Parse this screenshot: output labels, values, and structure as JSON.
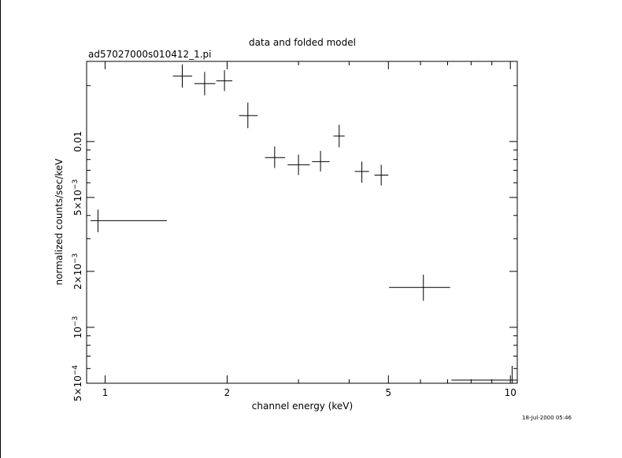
{
  "chart_data": {
    "type": "scatter",
    "title": "data and folded model",
    "subtitle": "ad57027000s010412_1.pi",
    "xlabel": "channel energy (keV)",
    "ylabel": "normalized counts/sec/keV",
    "x_scale": "log",
    "y_scale": "log",
    "xlim": [
      0.9,
      10.4
    ],
    "ylim": [
      0.0005,
      0.027
    ],
    "x_ticks": [
      {
        "value": 1,
        "label": "1"
      },
      {
        "value": 2,
        "label": "2"
      },
      {
        "value": 5,
        "label": "5"
      },
      {
        "value": 10,
        "label": "10"
      }
    ],
    "y_ticks": [
      {
        "value": 0.01,
        "base": "0.01",
        "exp": ""
      },
      {
        "value": 0.005,
        "base": "5×10",
        "exp": "−3"
      },
      {
        "value": 0.002,
        "base": "2×10",
        "exp": "−3"
      },
      {
        "value": 0.001,
        "base": "10",
        "exp": "−3"
      },
      {
        "value": 0.0005,
        "base": "5×10",
        "exp": "−4"
      }
    ],
    "grid": false,
    "series": [
      {
        "points": [
          {
            "x": 0.96,
            "xlo": 0.92,
            "xhi": 1.42,
            "y": 0.00375,
            "ylo": 0.00325,
            "yhi": 0.0043
          },
          {
            "x": 1.55,
            "xlo": 1.47,
            "xhi": 1.64,
            "y": 0.0225,
            "ylo": 0.0195,
            "yhi": 0.026
          },
          {
            "x": 1.76,
            "xlo": 1.66,
            "xhi": 1.87,
            "y": 0.0205,
            "ylo": 0.0177,
            "yhi": 0.0237
          },
          {
            "x": 1.97,
            "xlo": 1.88,
            "xhi": 2.06,
            "y": 0.0212,
            "ylo": 0.0187,
            "yhi": 0.0242
          },
          {
            "x": 2.25,
            "xlo": 2.14,
            "xhi": 2.38,
            "y": 0.0138,
            "ylo": 0.0118,
            "yhi": 0.0162
          },
          {
            "x": 2.62,
            "xlo": 2.48,
            "xhi": 2.78,
            "y": 0.0082,
            "ylo": 0.0072,
            "yhi": 0.0094
          },
          {
            "x": 3.0,
            "xlo": 2.82,
            "xhi": 3.2,
            "y": 0.0075,
            "ylo": 0.0066,
            "yhi": 0.0085
          },
          {
            "x": 3.4,
            "xlo": 3.24,
            "xhi": 3.58,
            "y": 0.0078,
            "ylo": 0.0069,
            "yhi": 0.0089
          },
          {
            "x": 3.78,
            "xlo": 3.66,
            "xhi": 3.9,
            "y": 0.0107,
            "ylo": 0.0093,
            "yhi": 0.0123
          },
          {
            "x": 4.3,
            "xlo": 4.13,
            "xhi": 4.48,
            "y": 0.0069,
            "ylo": 0.006,
            "yhi": 0.0078
          },
          {
            "x": 4.8,
            "xlo": 4.62,
            "xhi": 5.0,
            "y": 0.0066,
            "ylo": 0.0058,
            "yhi": 0.0075
          },
          {
            "x": 6.1,
            "xlo": 5.02,
            "xhi": 7.1,
            "y": 0.00164,
            "ylo": 0.00139,
            "yhi": 0.00192
          },
          {
            "x": 10.1,
            "xlo": 7.15,
            "xhi": 10.4,
            "y": 0.00052,
            "ylo": 0.0005,
            "yhi": 0.00062
          }
        ]
      }
    ]
  },
  "timestamp": "18-Jul-2000 05:46"
}
